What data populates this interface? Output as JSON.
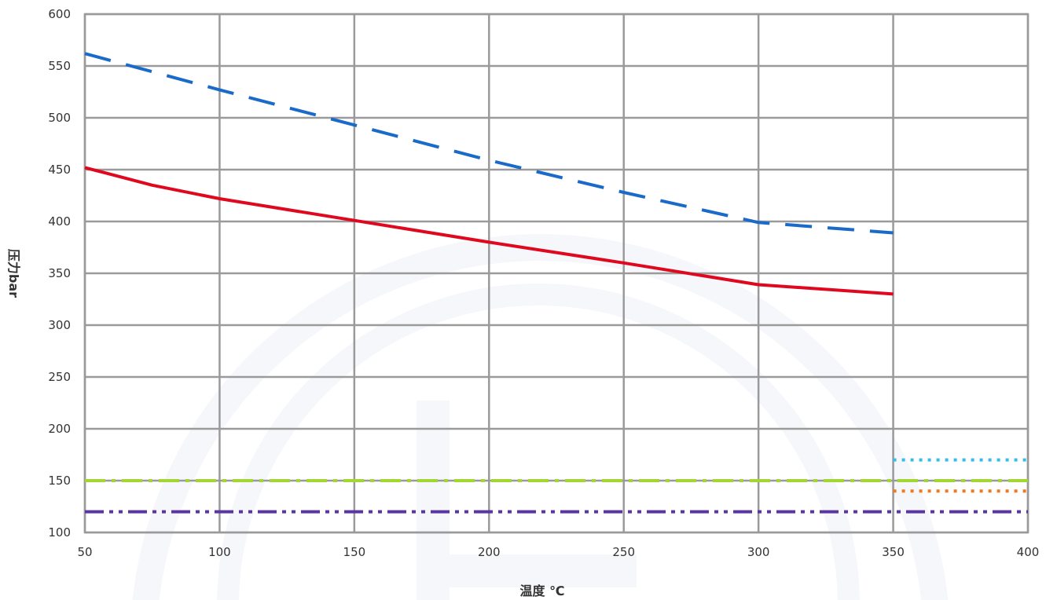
{
  "chart_data": {
    "type": "line",
    "xlabel": "温度 ℃",
    "ylabel": "压力bar",
    "xlim": [
      50,
      400
    ],
    "ylim": [
      100,
      600
    ],
    "x_ticks": [
      "50",
      "100",
      "150",
      "200",
      "250",
      "300",
      "350",
      "400"
    ],
    "y_ticks": [
      "100",
      "150",
      "200",
      "250",
      "300",
      "350",
      "400",
      "450",
      "500",
      "550",
      "600"
    ],
    "grid": true,
    "legend": "none",
    "series": [
      {
        "style": "dashed",
        "color": "#1a6ac9",
        "points": [
          [
            50,
            562
          ],
          [
            100,
            527
          ],
          [
            150,
            493
          ],
          [
            200,
            459
          ],
          [
            250,
            428
          ],
          [
            300,
            399
          ],
          [
            350,
            389
          ]
        ]
      },
      {
        "style": "solid",
        "color": "#e0081e",
        "points": [
          [
            50,
            452
          ],
          [
            75,
            435
          ],
          [
            100,
            422
          ],
          [
            150,
            401
          ],
          [
            200,
            380
          ],
          [
            250,
            360
          ],
          [
            300,
            339
          ],
          [
            350,
            330
          ]
        ]
      },
      {
        "style": "dotted",
        "color": "#35bde8",
        "points": [
          [
            350,
            170
          ],
          [
            400,
            170
          ]
        ]
      },
      {
        "style": "dash-dot",
        "color": "#a2d630",
        "points": [
          [
            50,
            150
          ],
          [
            400,
            150
          ]
        ]
      },
      {
        "style": "dotted",
        "color": "#f0781e",
        "points": [
          [
            350,
            140
          ],
          [
            400,
            140
          ]
        ]
      },
      {
        "style": "dash-dot-dot",
        "color": "#5b35a0",
        "points": [
          [
            50,
            120
          ],
          [
            400,
            120
          ]
        ]
      }
    ]
  }
}
